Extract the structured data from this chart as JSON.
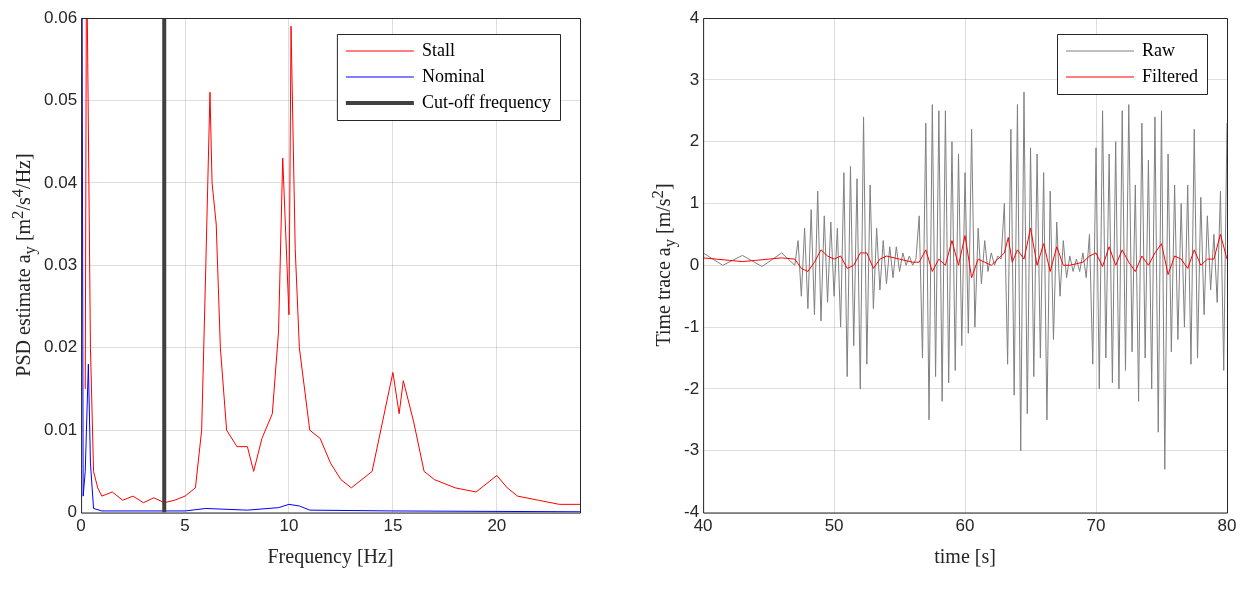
{
  "chart_data": [
    {
      "type": "line",
      "xlabel": "Frequency [Hz]",
      "ylabel": "PSD estimate a$_{y}$ [m$^{2}$/s$^{4}$/Hz]",
      "xlim": [
        0,
        24
      ],
      "xticks": [
        0,
        5,
        10,
        15,
        20
      ],
      "ylim": [
        0,
        0.06
      ],
      "yticks": [
        0,
        0.01,
        0.02,
        0.03,
        0.04,
        0.05,
        0.06
      ],
      "grid": true,
      "legend": "top right",
      "series": [
        {
          "name": "Stall",
          "color": "#ff0000",
          "x": [
            0.2,
            0.25,
            0.3,
            0.45,
            0.6,
            0.8,
            1,
            1.5,
            2,
            2.5,
            3,
            3.5,
            4,
            4.5,
            5,
            5.5,
            5.8,
            6,
            6.2,
            6.3,
            6.5,
            6.7,
            7,
            7.5,
            8,
            8.3,
            8.7,
            9.2,
            9.5,
            9.7,
            10,
            10.1,
            10.3,
            10.5,
            11,
            11.5,
            12,
            12.5,
            13,
            14,
            14.5,
            15,
            15.3,
            15.5,
            16,
            16.5,
            17,
            18,
            19,
            20,
            20.5,
            21,
            22,
            23,
            24
          ],
          "values": [
            0.015,
            0.06,
            0.06,
            0.02,
            0.005,
            0.003,
            0.002,
            0.0025,
            0.0015,
            0.002,
            0.0012,
            0.0018,
            0.0012,
            0.0015,
            0.002,
            0.003,
            0.01,
            0.03,
            0.051,
            0.04,
            0.035,
            0.02,
            0.01,
            0.008,
            0.008,
            0.005,
            0.009,
            0.012,
            0.022,
            0.043,
            0.024,
            0.059,
            0.032,
            0.02,
            0.01,
            0.009,
            0.006,
            0.004,
            0.003,
            0.005,
            0.011,
            0.017,
            0.012,
            0.016,
            0.011,
            0.005,
            0.004,
            0.003,
            0.0025,
            0.0045,
            0.003,
            0.002,
            0.0015,
            0.001,
            0.001
          ]
        },
        {
          "name": "Nominal",
          "color": "#0000ff",
          "x": [
            0.05,
            0.1,
            0.2,
            0.35,
            0.45,
            0.6,
            1,
            5,
            6,
            8,
            9.5,
            10,
            10.5,
            11,
            15,
            24
          ],
          "values": [
            0.06,
            0.002,
            0.005,
            0.018,
            0.006,
            0.0005,
            0.0002,
            0.0002,
            0.0005,
            0.0003,
            0.0006,
            0.001,
            0.0008,
            0.0003,
            0.0002,
            0.0001
          ]
        },
        {
          "name": "Cut-off frequency",
          "color": "#404040",
          "x": [
            4,
            4
          ],
          "values": [
            0,
            0.06
          ]
        }
      ]
    },
    {
      "type": "line",
      "xlabel": "time [s]",
      "ylabel": "Time trace a$_{y}$ [m/s$^{2}$]",
      "xlim": [
        40,
        80
      ],
      "xticks": [
        40,
        50,
        60,
        70,
        80
      ],
      "ylim": [
        -4,
        4
      ],
      "yticks": [
        -4,
        -3,
        -2,
        -1,
        0,
        1,
        2,
        3,
        4
      ],
      "grid": true,
      "legend": "top right",
      "series": [
        {
          "name": "Raw",
          "color": "#808080",
          "x": [
            40,
            41.5,
            43,
            44.5,
            46,
            47,
            47.25,
            47.5,
            47.75,
            48,
            48.25,
            48.5,
            48.75,
            49,
            49.25,
            49.5,
            49.75,
            50,
            50.25,
            50.5,
            50.75,
            51,
            51.25,
            51.5,
            51.75,
            52,
            52.25,
            52.5,
            52.75,
            53,
            53.25,
            53.5,
            53.75,
            54,
            54.25,
            54.5,
            54.75,
            55,
            55.25,
            55.5,
            55.75,
            56,
            56.25,
            56.5,
            56.75,
            57,
            57.25,
            57.5,
            57.75,
            58,
            58.25,
            58.5,
            58.75,
            59,
            59.25,
            59.5,
            59.75,
            60,
            60.25,
            60.5,
            60.75,
            61,
            61.25,
            61.5,
            61.75,
            62,
            62.25,
            62.5,
            62.75,
            63,
            63.25,
            63.5,
            63.75,
            64,
            64.25,
            64.5,
            64.75,
            65,
            65.25,
            65.5,
            65.75,
            66,
            66.25,
            66.5,
            66.75,
            67,
            67.25,
            67.5,
            67.75,
            68,
            68.25,
            68.5,
            68.75,
            69,
            69.25,
            69.5,
            69.75,
            70,
            70.25,
            70.5,
            70.75,
            71,
            71.25,
            71.5,
            71.75,
            72,
            72.25,
            72.5,
            72.75,
            73,
            73.25,
            73.5,
            73.75,
            74,
            74.25,
            74.5,
            74.75,
            75,
            75.25,
            75.5,
            75.75,
            76,
            76.25,
            76.5,
            76.75,
            77,
            77.25,
            77.5,
            77.75,
            78,
            78.25,
            78.5,
            78.75,
            79,
            79.25,
            79.5,
            79.75,
            80
          ],
          "values": [
            0.2,
            0.0,
            0.16,
            -0.02,
            0.2,
            0.0,
            0.4,
            -0.5,
            0.6,
            -0.7,
            0.9,
            -0.8,
            1.2,
            -0.9,
            0.8,
            -0.6,
            0.7,
            -0.5,
            0.6,
            -1.0,
            1.5,
            -1.8,
            1.6,
            -1.3,
            1.4,
            -2.0,
            2.4,
            -1.6,
            1.3,
            -0.7,
            0.6,
            -0.4,
            0.4,
            -0.3,
            0.3,
            -0.2,
            0.3,
            -0.1,
            0.2,
            0.0,
            0.15,
            0.0,
            0.1,
            0.8,
            -1.5,
            2.3,
            -2.5,
            2.6,
            -1.8,
            2.5,
            -2.2,
            2.5,
            -1.9,
            2.0,
            -1.7,
            1.8,
            -1.3,
            1.5,
            -1.1,
            2.2,
            -1.0,
            0.6,
            -0.3,
            0.4,
            -0.1,
            0.2,
            0.0,
            0.15,
            0.1,
            1.0,
            -1.6,
            2.2,
            -2.1,
            2.6,
            -3.0,
            2.8,
            -2.4,
            1.9,
            -1.8,
            1.8,
            -1.5,
            1.5,
            -2.5,
            1.2,
            -1.2,
            0.7,
            -0.5,
            0.4,
            -0.2,
            0.15,
            -0.1,
            0.1,
            -0.1,
            0.2,
            -0.2,
            0.5,
            -1.6,
            1.9,
            -2.0,
            2.5,
            -1.5,
            1.8,
            -1.9,
            2.0,
            -2.0,
            2.5,
            -1.7,
            2.6,
            -1.4,
            1.3,
            -2.2,
            2.3,
            -1.5,
            1.7,
            -2.0,
            2.4,
            -2.7,
            2.5,
            -3.3,
            1.8,
            -1.4,
            1.3,
            -1.2,
            1.0,
            -1.0,
            1.3,
            -1.6,
            2.2,
            -1.5,
            1.1,
            -0.8,
            0.8,
            -0.4,
            0.5,
            -0.6,
            1.2,
            -1.7,
            2.3
          ]
        },
        {
          "name": "Filtered",
          "color": "#ff0000",
          "x": [
            40,
            41,
            42,
            43,
            44,
            45,
            46,
            47,
            47.5,
            48,
            48.5,
            49,
            49.5,
            50,
            50.5,
            51,
            51.5,
            52,
            52.5,
            53,
            53.5,
            54,
            55,
            56,
            56.5,
            57,
            57.5,
            58,
            58.5,
            59,
            59.5,
            60,
            60.5,
            61,
            61.5,
            62,
            62.5,
            63,
            63.3,
            63.6,
            64,
            64.5,
            65,
            65.5,
            66,
            66.5,
            67,
            67.5,
            68,
            69,
            69.5,
            70,
            70.5,
            71,
            71.5,
            72,
            72.5,
            73,
            73.5,
            74,
            74.5,
            75,
            75.5,
            76,
            76.5,
            77,
            77.5,
            78,
            78.5,
            79,
            79.5,
            80
          ],
          "values": [
            0.12,
            0.1,
            0.08,
            0.06,
            0.08,
            0.1,
            0.12,
            0.1,
            -0.05,
            -0.1,
            0.05,
            0.25,
            0.15,
            0.1,
            0.15,
            -0.05,
            0,
            0.2,
            0.2,
            -0.05,
            0.1,
            0.15,
            0.1,
            0.05,
            0.05,
            0.25,
            -0.1,
            0.1,
            0,
            0.4,
            0,
            0.48,
            -0.2,
            0.1,
            0.05,
            0,
            0.1,
            0.2,
            0.45,
            0.05,
            0.25,
            0.1,
            0.6,
            0,
            0.35,
            -0.1,
            0.3,
            0,
            0,
            0.05,
            0.15,
            0.2,
            -0.02,
            0.3,
            0,
            0.25,
            0.05,
            -0.1,
            0.15,
            0,
            0.2,
            0.35,
            -0.15,
            0.15,
            0.1,
            -0.05,
            0.25,
            0,
            0.1,
            0.1,
            0.5,
            0.1
          ]
        }
      ]
    }
  ]
}
